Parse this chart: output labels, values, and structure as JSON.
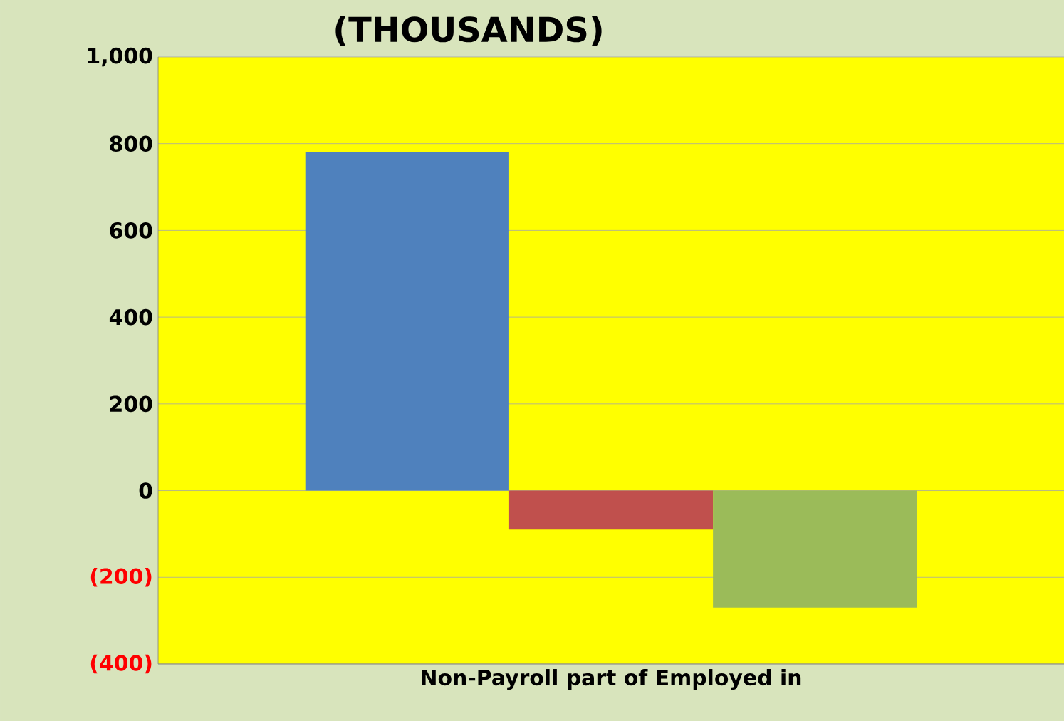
{
  "chart_data": {
    "type": "bar",
    "title": "(THOUSANDS)",
    "categories": [
      "Non-Payroll part of Employed in"
    ],
    "series": [
      {
        "color": "#4f81bd",
        "values": [
          780
        ]
      },
      {
        "color": "#c0504d",
        "values": [
          -90
        ]
      },
      {
        "color": "#9bbb59",
        "values": [
          -270
        ]
      }
    ],
    "ylim": [
      -400,
      1000
    ],
    "yticks": [
      {
        "value": -400,
        "label": "(400)"
      },
      {
        "value": -200,
        "label": "(200)"
      },
      0,
      200,
      400,
      600,
      800,
      {
        "value": 1000,
        "label": "1,000"
      }
    ],
    "grid": "y"
  }
}
